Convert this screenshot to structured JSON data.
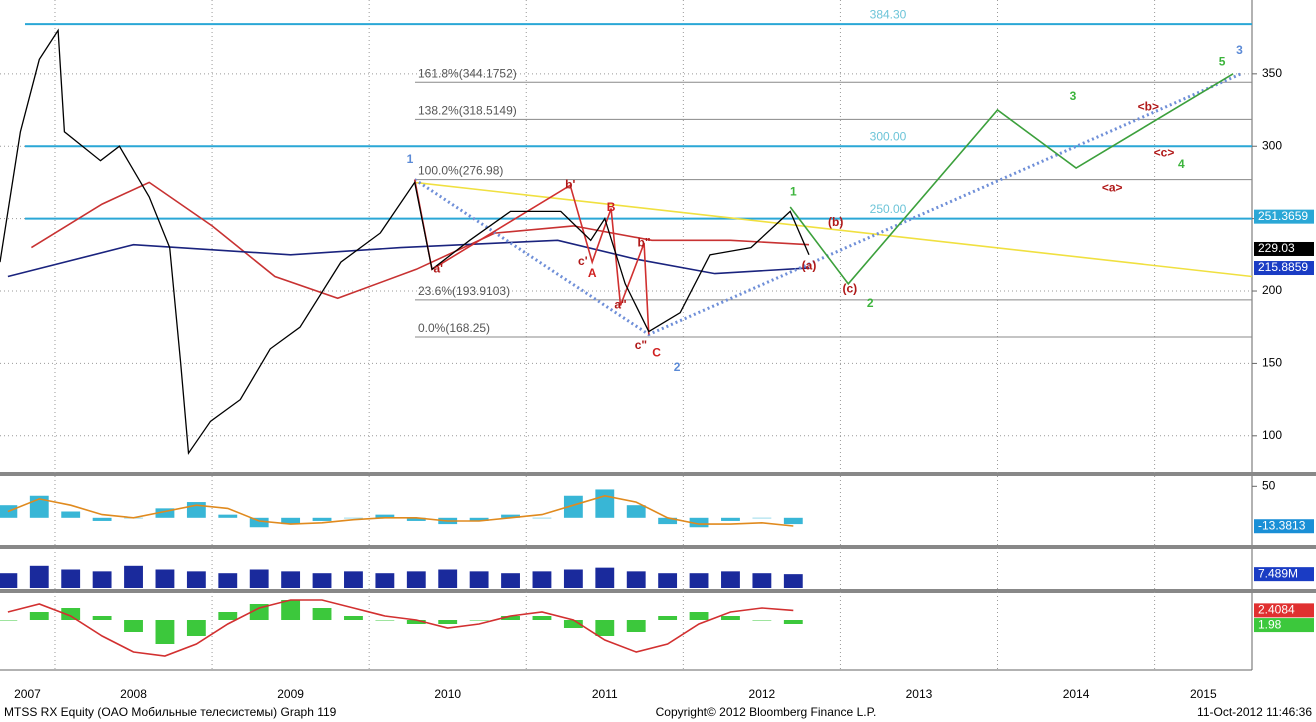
{
  "chart_data": [
    {
      "type": "line",
      "xlim": [
        2007.65,
        2015.62
      ],
      "ylim": [
        75,
        401
      ],
      "xticks": [
        2007,
        2008,
        2009,
        2010,
        2011,
        2012,
        2013,
        2014,
        2015
      ],
      "yticks": [
        100,
        150,
        200,
        250,
        300,
        350
      ],
      "grid": true,
      "series": [
        {
          "color": "#000000",
          "x": [
            2007.65,
            2007.78,
            2007.9,
            2008.02,
            2008.06,
            2008.29,
            2008.41,
            2008.6,
            2008.73,
            2008.8,
            2008.85,
            2008.99,
            2009.18,
            2009.37,
            2009.56,
            2009.82,
            2010.07,
            2010.29,
            2010.4,
            2010.64,
            2010.9,
            2011.22,
            2011.41,
            2011.5,
            2011.63,
            2011.78,
            2011.98,
            2012.17,
            2012.43,
            2012.68,
            2012.8
          ],
          "values": [
            220,
            310,
            360,
            380,
            310,
            290,
            300,
            265,
            230,
            150,
            88,
            110,
            125,
            160,
            175,
            220,
            240,
            275,
            215,
            235,
            255,
            255,
            235,
            250,
            205,
            172,
            185,
            225,
            230,
            255,
            225
          ]
        }
      ],
      "overlays": [
        {
          "color": "#c83232",
          "dash": "none",
          "x": [
            2007.85,
            2008.3,
            2008.6,
            2009.0,
            2009.4,
            2009.8,
            2010.3,
            2010.8,
            2011.3,
            2011.8,
            2012.3,
            2012.8
          ],
          "y": [
            230,
            260,
            275,
            245,
            210,
            195,
            215,
            240,
            245,
            235,
            235,
            232
          ]
        },
        {
          "color": "#1a237e",
          "dash": "none",
          "x": [
            2007.7,
            2008.5,
            2009.5,
            2010.2,
            2011.2,
            2011.7,
            2012.2,
            2012.8
          ],
          "y": [
            210,
            232,
            225,
            230,
            235,
            222,
            212,
            216
          ]
        },
        {
          "color": "#f0e040",
          "dash": "none",
          "x": [
            2010.29,
            2015.62
          ],
          "y": [
            275,
            210
          ]
        },
        {
          "color": "#6f8fd8",
          "dash": "dotted",
          "x": [
            2010.29,
            2011.78,
            2015.55
          ],
          "y": [
            277,
            170,
            350
          ]
        },
        {
          "color": "#3ca03c",
          "dash": "none",
          "x": [
            2012.68,
            2013.05,
            2014.0,
            2014.5,
            2015.5
          ],
          "y": [
            258,
            205,
            325,
            285,
            350
          ]
        },
        {
          "color": "#d03030",
          "dash": "none",
          "x": [
            2010.29,
            2010.4,
            2011.28,
            2011.42,
            2011.54,
            2011.6,
            2011.75,
            2011.78
          ],
          "y": [
            277,
            215,
            273,
            220,
            257,
            190,
            233,
            170
          ]
        }
      ],
      "levels": [
        {
          "value": 384.3,
          "label": "384.30",
          "color": "#2aa7d6"
        },
        {
          "value": 300,
          "label": "300.00",
          "color": "#2aa7d6"
        },
        {
          "value": 250,
          "label": "250.00",
          "color": "#2aa7d6"
        }
      ],
      "fib": [
        {
          "value": 344.1752,
          "label": "161.8%(344.1752)"
        },
        {
          "value": 318.5149,
          "label": "138.2%(318.5149)"
        },
        {
          "value": 276.98,
          "label": "100.0%(276.98)"
        },
        {
          "value": 193.9103,
          "label": "23.6%(193.9103)"
        },
        {
          "value": 168.25,
          "label": "0.0%(168.25)"
        }
      ],
      "price_tags": [
        {
          "value": 251.3659,
          "color": "#2aa7d6"
        },
        {
          "value": 229.03,
          "color": "#000000"
        },
        {
          "value": 215.8859,
          "color": "#1a3cc4"
        }
      ],
      "annotations": [
        {
          "text": "1",
          "x": 2010.26,
          "y": 290.6,
          "color": "#5b8ad6",
          "style": "big"
        },
        {
          "text": "2",
          "x": 2011.96,
          "y": 147,
          "color": "#5b8ad6",
          "style": "big"
        },
        {
          "text": "3",
          "x": 2015.54,
          "y": 366,
          "color": "#5b8ad6",
          "style": "big"
        },
        {
          "text": "1",
          "x": 2012.7,
          "y": 268,
          "color": "#3cb43c",
          "style": "big"
        },
        {
          "text": "2",
          "x": 2013.19,
          "y": 191,
          "color": "#3cb43c",
          "style": "big"
        },
        {
          "text": "3",
          "x": 2014.48,
          "y": 334,
          "color": "#3cb43c",
          "style": "big"
        },
        {
          "text": "4",
          "x": 2015.17,
          "y": 287,
          "color": "#3cb43c",
          "style": "big"
        },
        {
          "text": "5",
          "x": 2015.43,
          "y": 358,
          "color": "#3cb43c",
          "style": "big"
        },
        {
          "text": "B",
          "x": 2011.54,
          "y": 257.5,
          "color": "#d02020",
          "style": "big"
        },
        {
          "text": "A",
          "x": 2011.42,
          "y": 212,
          "color": "#d02020",
          "style": "big"
        },
        {
          "text": "C",
          "x": 2011.83,
          "y": 157,
          "color": "#d02020",
          "style": "big"
        },
        {
          "text": "(a)",
          "x": 2012.8,
          "y": 217,
          "color": "#b01818",
          "style": "small"
        },
        {
          "text": "(b)",
          "x": 2012.97,
          "y": 247,
          "color": "#b01818",
          "style": "small"
        },
        {
          "text": "(c)",
          "x": 2013.06,
          "y": 201,
          "color": "#b01818",
          "style": "small"
        },
        {
          "text": "<a>",
          "x": 2014.73,
          "y": 271,
          "color": "#b01818",
          "style": "small"
        },
        {
          "text": "<b>",
          "x": 2014.96,
          "y": 327,
          "color": "#b01818",
          "style": "small"
        },
        {
          "text": "<c>",
          "x": 2015.06,
          "y": 295,
          "color": "#b01818",
          "style": "small"
        },
        {
          "text": "a'",
          "x": 2010.44,
          "y": 215,
          "color": "#b01818",
          "style": "small"
        },
        {
          "text": "b'",
          "x": 2011.28,
          "y": 273,
          "color": "#b01818",
          "style": "small"
        },
        {
          "text": "c'",
          "x": 2011.36,
          "y": 220,
          "color": "#b01818",
          "style": "small"
        },
        {
          "text": "a\"",
          "x": 2011.6,
          "y": 190,
          "color": "#b01818",
          "style": "small"
        },
        {
          "text": "b\"",
          "x": 2011.75,
          "y": 233,
          "color": "#b01818",
          "style": "small"
        },
        {
          "text": "c\"",
          "x": 2011.73,
          "y": 162,
          "color": "#b01818",
          "style": "small"
        }
      ]
    },
    {
      "type": "combo",
      "ylim": [
        -40,
        60
      ],
      "yticks": [
        50
      ],
      "x": [
        2007.7,
        2007.9,
        2008.1,
        2008.3,
        2008.5,
        2008.7,
        2008.9,
        2009.1,
        2009.3,
        2009.5,
        2009.7,
        2009.9,
        2010.1,
        2010.3,
        2010.5,
        2010.7,
        2010.9,
        2011.1,
        2011.3,
        2011.5,
        2011.7,
        2011.9,
        2012.1,
        2012.3,
        2012.5,
        2012.7
      ],
      "values": [
        20,
        35,
        10,
        -5,
        0,
        15,
        25,
        5,
        -15,
        -10,
        -5,
        0,
        5,
        -5,
        -10,
        -5,
        5,
        0,
        35,
        45,
        20,
        -10,
        -15,
        -5,
        0,
        -10
      ],
      "color": "#38b6d6",
      "line": [
        10,
        30,
        20,
        5,
        0,
        10,
        20,
        15,
        -5,
        -10,
        -8,
        -3,
        0,
        0,
        -5,
        -5,
        0,
        5,
        20,
        35,
        25,
        0,
        -10,
        -10,
        -8,
        -13
      ],
      "line_color": "#e08a1e",
      "tags": [
        {
          "value": -13.3813,
          "color": "#1a8fd6"
        }
      ]
    },
    {
      "type": "bar",
      "ylim": [
        0,
        20
      ],
      "x": [
        2007.7,
        2007.9,
        2008.1,
        2008.3,
        2008.5,
        2008.7,
        2008.9,
        2009.1,
        2009.3,
        2009.5,
        2009.7,
        2009.9,
        2010.1,
        2010.3,
        2010.5,
        2010.7,
        2010.9,
        2011.1,
        2011.3,
        2011.5,
        2011.7,
        2011.9,
        2012.1,
        2012.3,
        2012.5,
        2012.7
      ],
      "values": [
        8,
        12,
        10,
        9,
        12,
        10,
        9,
        8,
        10,
        9,
        8,
        9,
        8,
        9,
        10,
        9,
        8,
        9,
        10,
        11,
        9,
        8,
        8,
        9,
        8,
        7.489
      ],
      "color": "#1a2a9c",
      "tags": [
        {
          "value": 7.489,
          "label": "7.489M",
          "color": "#1a3cc4"
        }
      ]
    },
    {
      "type": "combo",
      "ylim": [
        -12,
        6
      ],
      "x": [
        2007.7,
        2007.9,
        2008.1,
        2008.3,
        2008.5,
        2008.7,
        2008.9,
        2009.1,
        2009.3,
        2009.5,
        2009.7,
        2009.9,
        2010.1,
        2010.3,
        2010.5,
        2010.7,
        2010.9,
        2011.1,
        2011.3,
        2011.5,
        2011.7,
        2011.9,
        2012.1,
        2012.3,
        2012.5,
        2012.7
      ],
      "values": [
        0,
        2,
        3,
        1,
        -3,
        -6,
        -4,
        2,
        4,
        5,
        3,
        1,
        0,
        -1,
        -1,
        0,
        1,
        1,
        -2,
        -4,
        -3,
        1,
        2,
        1,
        0,
        -1
      ],
      "color": "#3cc83c",
      "line": [
        2,
        4,
        1,
        -4,
        -8,
        -9,
        -6,
        -1,
        3,
        5,
        5,
        3,
        1,
        0,
        -2,
        -1,
        1,
        2,
        0,
        -5,
        -8,
        -6,
        -1,
        2,
        3,
        2.4084
      ],
      "line_color": "#d23030",
      "tags": [
        {
          "value": 2.4084,
          "color": "#e03030"
        },
        {
          "value": 1.98,
          "color": "#3cc83c"
        }
      ]
    }
  ],
  "footer": {
    "left": "MTSS RX Equity (OAO Мобильные телесистемы) Graph 119",
    "center": "Copyright© 2012 Bloomberg Finance L.P.",
    "right": "11-Oct-2012 11:46:36"
  }
}
